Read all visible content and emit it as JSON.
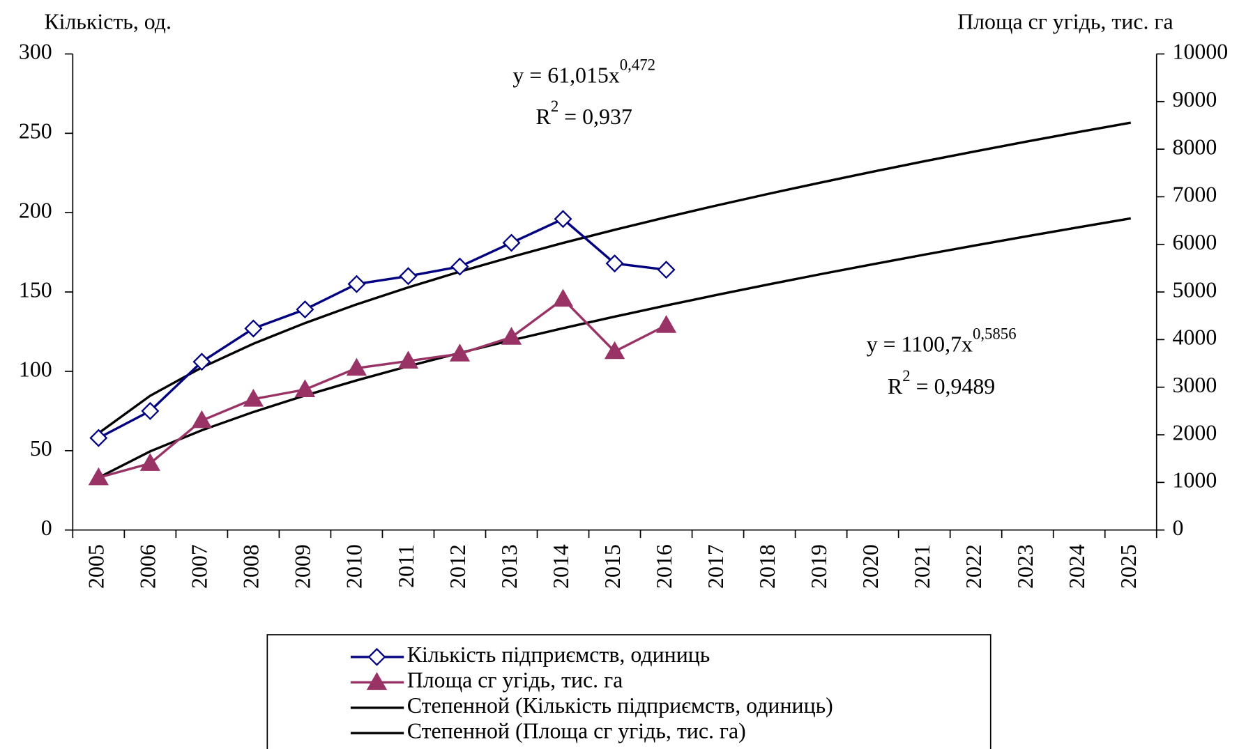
{
  "chart_data": {
    "type": "line",
    "y_label": "Кількість, од.",
    "y2_label": "Площа сг угідь, тис. га",
    "categories": [
      "2005",
      "2006",
      "2007",
      "2008",
      "2009",
      "2010",
      "2011",
      "2012",
      "2013",
      "2014",
      "2015",
      "2016",
      "2017",
      "2018",
      "2019",
      "2020",
      "2021",
      "2022",
      "2023",
      "2024",
      "2025"
    ],
    "series": [
      {
        "name": "Кількість підприємств, одиниць",
        "color": "#000080",
        "marker": "diamond",
        "values": [
          58,
          75,
          106,
          127,
          139,
          155,
          160,
          166,
          181,
          196,
          168,
          164,
          null,
          null,
          null,
          null,
          null,
          null,
          null,
          null,
          null
        ]
      },
      {
        "name": "Площа сг угідь, тис. га",
        "color": "#993366",
        "marker": "triangle",
        "axis": "y2",
        "values": [
          1100,
          1400,
          2300,
          2750,
          2950,
          3400,
          3550,
          3700,
          4050,
          4850,
          3750,
          4300,
          null,
          null,
          null,
          null,
          null,
          null,
          null,
          null,
          null
        ]
      },
      {
        "name": "Степенной (Кількість підприємств, одиниць)",
        "color": "#000000",
        "values": [
          61.0,
          84.6,
          102.4,
          117.4,
          130.4,
          142.2,
          152.9,
          162.8,
          172.1,
          180.9,
          189.2,
          197.1,
          204.7,
          212.0,
          219.0,
          225.8,
          232.4,
          238.7,
          244.9,
          250.9,
          256.7
        ]
      },
      {
        "name": "Степенной (Площа сг угідь, тис. га)",
        "color": "#000000",
        "axis": "y2",
        "values": [
          1101,
          1652,
          2095,
          2479,
          2825,
          3143,
          3440,
          3720,
          3986,
          4239,
          4482,
          4717,
          4943,
          5163,
          5376,
          5582,
          5784,
          5980,
          6173,
          6361,
          6546
        ]
      }
    ],
    "annotations": [
      {
        "text": "y = 61,015x",
        "sup": "0,472"
      },
      {
        "text": "R",
        "sup": "2",
        "after": " = 0,937"
      },
      {
        "text": "y = 1100,7x",
        "sup": "0,5856"
      },
      {
        "text": "R",
        "sup": "2",
        "after": " = 0,9489"
      }
    ],
    "ylim": [
      0,
      300
    ],
    "yticks": [
      0,
      50,
      100,
      150,
      200,
      250,
      300
    ],
    "y2lim": [
      0,
      10000
    ],
    "y2ticks": [
      0,
      1000,
      2000,
      3000,
      4000,
      5000,
      6000,
      7000,
      8000,
      9000,
      10000
    ],
    "legend": "bottom"
  }
}
